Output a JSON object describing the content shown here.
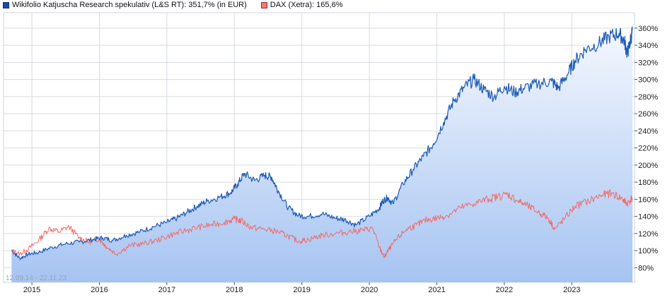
{
  "legend": [
    {
      "label": "Wikifolio Katjuscha Research spekulativ (L&S RT): 351,7% (in EUR)",
      "color": "#1d4aa6"
    },
    {
      "label": "DAX (Xetra): 165,6%",
      "color": "#f27878"
    }
  ],
  "date_range": "12.09.14 - 22.11.23",
  "chart_data": {
    "type": "line",
    "title": "",
    "xlabel": "",
    "ylabel": "",
    "ylim": [
      63,
      378
    ],
    "xlim": [
      2014.58,
      2023.93
    ],
    "y_ticks": [
      80,
      100,
      120,
      140,
      160,
      180,
      200,
      220,
      240,
      260,
      280,
      300,
      320,
      340,
      360
    ],
    "y_tick_suffix": "%",
    "y_axis_position": "right",
    "x_ticks": [
      {
        "label": "2015",
        "x": 2015.0
      },
      {
        "label": "2016",
        "x": 2016.0
      },
      {
        "label": "2017",
        "x": 2017.0
      },
      {
        "label": "2018",
        "x": 2018.0
      },
      {
        "label": "2019",
        "x": 2019.0
      },
      {
        "label": "2020",
        "x": 2020.0
      },
      {
        "label": "2021",
        "x": 2021.0
      },
      {
        "label": "2022",
        "x": 2022.0
      },
      {
        "label": "2023",
        "x": 2023.0
      }
    ],
    "grid": true,
    "legend_position": "top-left",
    "series": [
      {
        "name": "Wikifolio Katjuscha Research spekulativ (L&S RT): 351,7% (in EUR)",
        "color": "#1d5bb8",
        "fill": true,
        "x": [
          2014.7,
          2014.82,
          2014.95,
          2015.1,
          2015.3,
          2015.5,
          2015.7,
          2015.9,
          2016.05,
          2016.2,
          2016.4,
          2016.6,
          2016.8,
          2017.0,
          2017.15,
          2017.3,
          2017.45,
          2017.6,
          2017.8,
          2017.95,
          2018.05,
          2018.15,
          2018.3,
          2018.45,
          2018.55,
          2018.65,
          2018.8,
          2018.95,
          2019.1,
          2019.3,
          2019.5,
          2019.65,
          2019.8,
          2020.0,
          2020.15,
          2020.2,
          2020.27,
          2020.35,
          2020.5,
          2020.65,
          2020.8,
          2020.95,
          2021.1,
          2021.25,
          2021.4,
          2021.55,
          2021.7,
          2021.85,
          2022.0,
          2022.15,
          2022.3,
          2022.5,
          2022.7,
          2022.8,
          2022.95,
          2023.05,
          2023.2,
          2023.4,
          2023.55,
          2023.7,
          2023.78,
          2023.82,
          2023.86,
          2023.9
        ],
        "y": [
          100,
          91,
          96,
          98,
          104,
          108,
          110,
          113,
          115,
          112,
          118,
          122,
          128,
          133,
          138,
          145,
          152,
          158,
          163,
          168,
          178,
          190,
          182,
          188,
          186,
          170,
          150,
          141,
          140,
          143,
          138,
          136,
          130,
          140,
          150,
          158,
          162,
          155,
          178,
          195,
          210,
          225,
          250,
          275,
          290,
          300,
          288,
          280,
          292,
          285,
          290,
          295,
          298,
          290,
          308,
          322,
          335,
          342,
          350,
          354,
          345,
          330,
          342,
          358
        ]
      },
      {
        "name": "DAX (Xetra): 165,6%",
        "color": "#f26a6a",
        "fill": false,
        "x": [
          2014.7,
          2014.82,
          2014.95,
          2015.1,
          2015.25,
          2015.4,
          2015.55,
          2015.7,
          2015.85,
          2016.0,
          2016.1,
          2016.25,
          2016.45,
          2016.65,
          2016.85,
          2017.05,
          2017.25,
          2017.45,
          2017.65,
          2017.85,
          2018.0,
          2018.1,
          2018.25,
          2018.45,
          2018.65,
          2018.8,
          2018.95,
          2019.1,
          2019.3,
          2019.5,
          2019.7,
          2019.9,
          2020.05,
          2020.15,
          2020.22,
          2020.28,
          2020.4,
          2020.55,
          2020.7,
          2020.85,
          2021.0,
          2021.15,
          2021.35,
          2021.55,
          2021.75,
          2021.9,
          2022.05,
          2022.2,
          2022.35,
          2022.5,
          2022.65,
          2022.75,
          2022.9,
          2023.05,
          2023.25,
          2023.45,
          2023.6,
          2023.75,
          2023.82,
          2023.9
        ],
        "y": [
          100,
          96,
          102,
          112,
          126,
          122,
          128,
          115,
          110,
          114,
          105,
          96,
          106,
          108,
          112,
          118,
          123,
          127,
          130,
          133,
          137,
          135,
          127,
          125,
          122,
          117,
          111,
          113,
          118,
          120,
          122,
          124,
          126,
          104,
          92,
          100,
          113,
          125,
          130,
          136,
          138,
          141,
          150,
          155,
          160,
          163,
          166,
          158,
          152,
          145,
          138,
          125,
          138,
          152,
          158,
          165,
          167,
          160,
          155,
          162
        ]
      }
    ]
  }
}
